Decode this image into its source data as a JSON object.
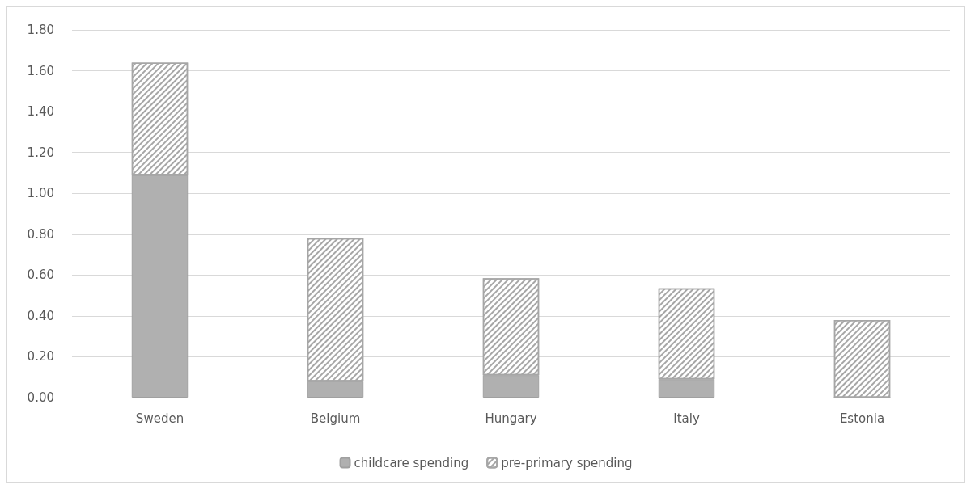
{
  "chart_data": {
    "type": "bar",
    "stacked": true,
    "categories": [
      "Sweden",
      "Belgium",
      "Hungary",
      "Italy",
      "Estonia"
    ],
    "series": [
      {
        "name": "childcare spending",
        "color": "#b0b0b0",
        "values": [
          1.09,
          0.08,
          0.11,
          0.09,
          0
        ]
      },
      {
        "name": "pre-primary spending",
        "color": "#a6a6a6",
        "values": [
          0.55,
          0.7,
          0.475,
          0.445,
          0.38
        ]
      }
    ],
    "ylim": [
      0,
      1.8
    ],
    "yticks": [
      {
        "value": 0,
        "label": "0.00"
      },
      {
        "value": 0.2,
        "label": "0.20"
      },
      {
        "value": 0.4,
        "label": "0.40"
      },
      {
        "value": 0.6,
        "label": "0.60"
      },
      {
        "value": 0.8,
        "label": "0.80"
      },
      {
        "value": 1,
        "label": "1.00"
      },
      {
        "value": 1.2,
        "label": "1.20"
      },
      {
        "value": 1.4,
        "label": "1.40"
      },
      {
        "value": 1.6,
        "label": "1.60"
      },
      {
        "value": 1.8,
        "label": "1.80"
      }
    ],
    "grid": "y",
    "legend": "bottom"
  }
}
